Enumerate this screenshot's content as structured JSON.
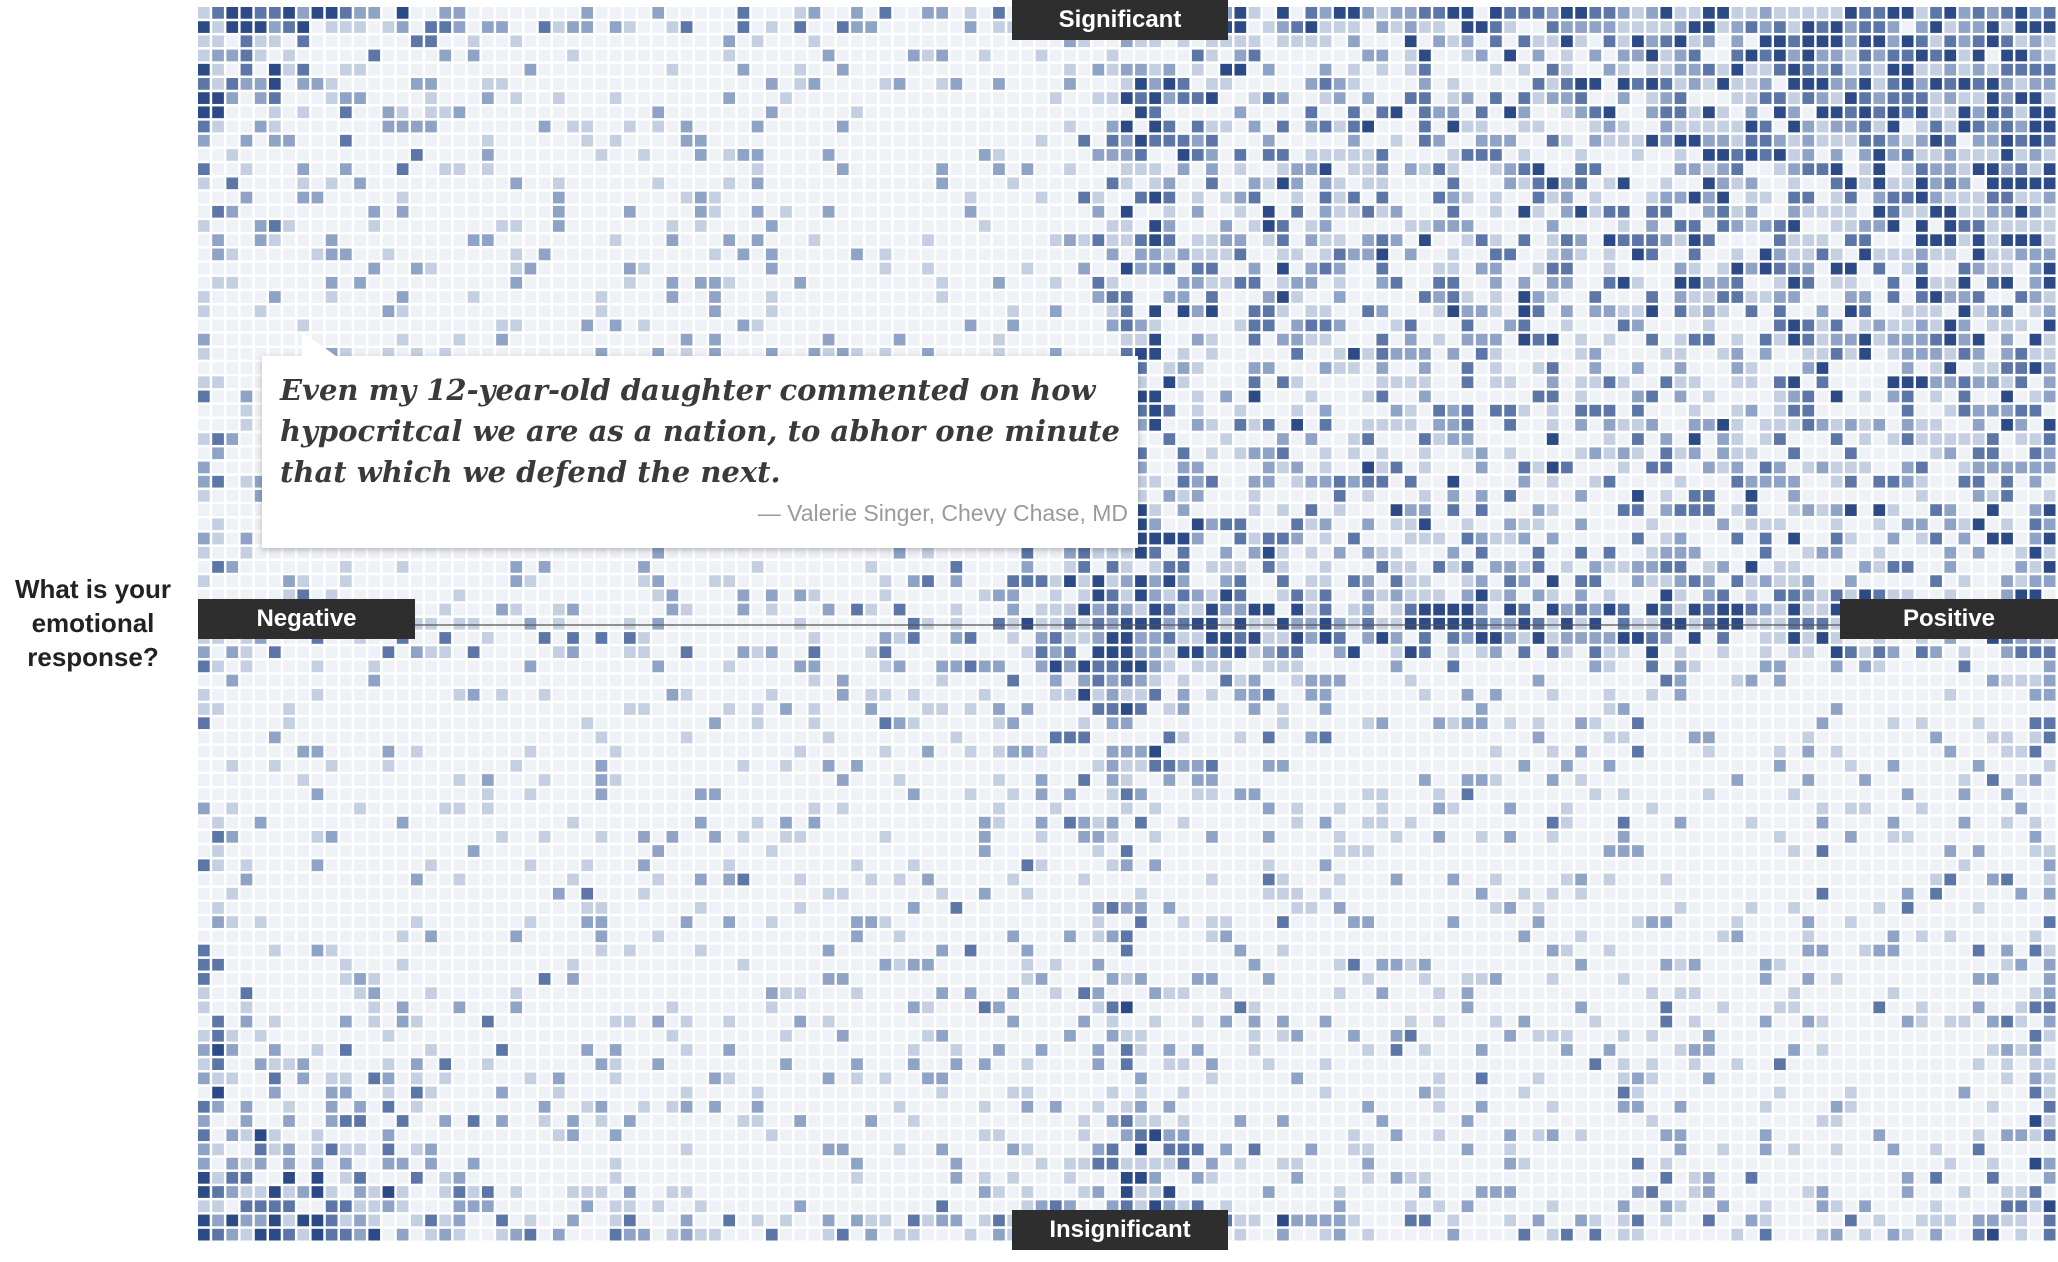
{
  "labels": {
    "top": "Significant",
    "bottom": "Insignificant",
    "left": "Negative",
    "right": "Positive",
    "question": "What is your emotional response?"
  },
  "quote": {
    "text": "Even my 12-year-old daughter commented on how hypocritcal we are as a nation, to abhor one minute that which we defend the next.",
    "attribution": "— Valerie Singer, Chevy Chase, MD"
  },
  "colors": {
    "label_bg": "#2e2e2e",
    "label_text": "#ffffff",
    "cell_empty": "#eef1f5",
    "cell_levels": [
      "#c4d0e2",
      "#8ea3c6",
      "#5b76a7",
      "#2c4a85"
    ]
  },
  "chart_data": {
    "type": "heatmap",
    "title": "",
    "xlabel": "",
    "ylabel": "What is your emotional response?",
    "x_axis_ends": [
      "Negative",
      "Positive"
    ],
    "y_axis_ends": [
      "Insignificant",
      "Significant"
    ],
    "grid_columns": 131,
    "grid_rows": 87,
    "density_by_quadrant": {
      "positive_significant": "highest",
      "negative_significant": "low",
      "negative_insignificant": "low",
      "positive_insignificant": "low-medium"
    },
    "hotspots": [
      "top-right corner",
      "center axes intersection",
      "bottom-left corner",
      "top-left corner",
      "bottom-center"
    ]
  }
}
